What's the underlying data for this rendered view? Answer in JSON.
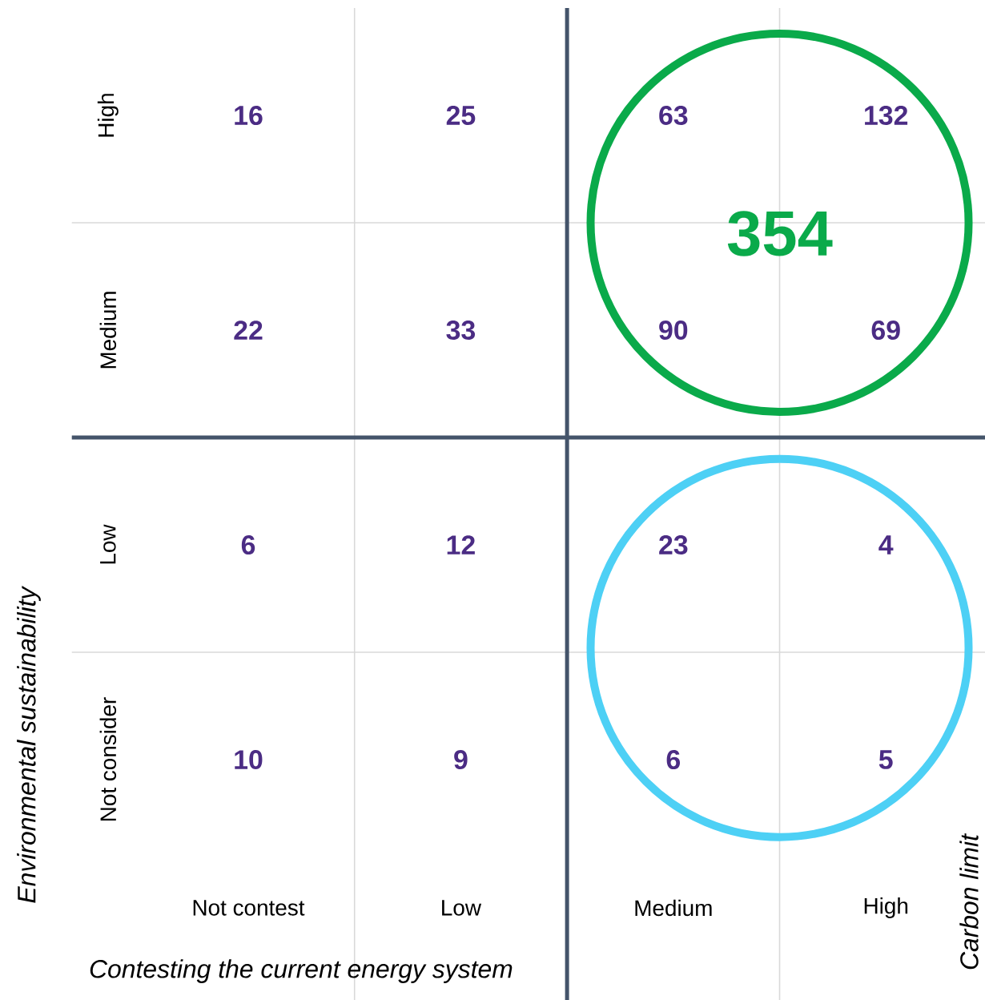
{
  "chart_data": {
    "type": "heatmap",
    "categories": [
      "Not contest",
      "Low",
      "Medium",
      "High"
    ],
    "y_categories": [
      "High",
      "Medium",
      "Low",
      "Not consider"
    ],
    "cells": [
      [
        16,
        25,
        63,
        132
      ],
      [
        22,
        33,
        90,
        69
      ],
      [
        6,
        12,
        23,
        4
      ],
      [
        10,
        9,
        6,
        5
      ]
    ],
    "xlabel": "Contesting the current energy system",
    "ylabel": "Environmental sustainability",
    "annotations": [
      "354",
      "Carbon limit"
    ],
    "data_labels": true,
    "grid": true
  }
}
